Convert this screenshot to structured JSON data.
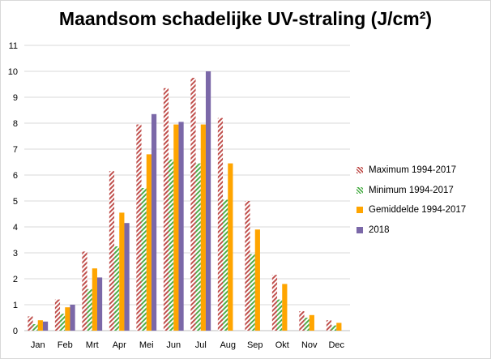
{
  "chart_data": {
    "type": "bar",
    "title": "Maandsom schadelijke UV-straling (J/cm²)",
    "xlabel": "",
    "ylabel": "",
    "ylim": [
      0,
      11
    ],
    "yticks": [
      0,
      1,
      2,
      3,
      4,
      5,
      6,
      7,
      8,
      9,
      10,
      11
    ],
    "grid": true,
    "legend_position": "right",
    "categories": [
      "Jan",
      "Feb",
      "Mrt",
      "Apr",
      "Mei",
      "Jun",
      "Jul",
      "Aug",
      "Sep",
      "Okt",
      "Nov",
      "Dec"
    ],
    "series": [
      {
        "name": "Maximum 1994-2017",
        "color": "#c0504d",
        "pattern": "diagonal-hatch",
        "values": [
          0.55,
          1.2,
          3.05,
          6.15,
          7.95,
          9.35,
          9.75,
          8.2,
          5.0,
          2.15,
          0.75,
          0.4
        ]
      },
      {
        "name": "Minimum 1994-2017",
        "color": "#4daf4a",
        "pattern": "diagonal-hatch",
        "values": [
          0.25,
          0.65,
          1.6,
          3.25,
          5.5,
          6.6,
          6.45,
          5.05,
          2.95,
          1.2,
          0.5,
          0.2
        ]
      },
      {
        "name": "Gemiddelde 1994-2017",
        "color": "#ffa500",
        "pattern": "solid",
        "values": [
          0.4,
          0.9,
          2.4,
          4.55,
          6.8,
          7.95,
          7.95,
          6.45,
          3.9,
          1.8,
          0.6,
          0.3
        ]
      },
      {
        "name": "2018",
        "color": "#7b68a8",
        "pattern": "solid",
        "values": [
          0.35,
          1.0,
          2.05,
          4.15,
          8.35,
          8.05,
          10.0,
          null,
          null,
          null,
          null,
          null
        ]
      }
    ]
  }
}
